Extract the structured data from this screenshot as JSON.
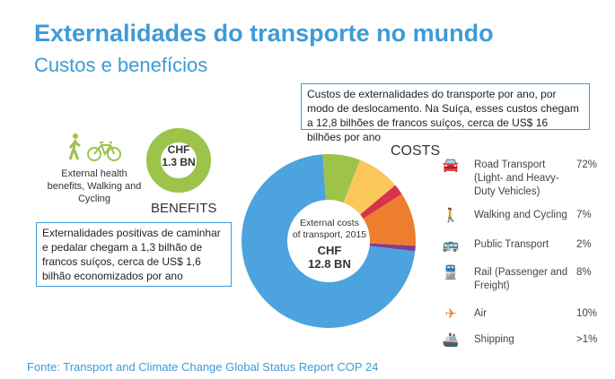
{
  "title": "Externalidades do transporte no mundo",
  "subtitle": "Custos e benefícios",
  "cost_note": "Custos de externalidades do transporte por ano, por modo de deslocamento. Na Suíça, esses custos chegam a 12,8 bilhões de francos suíços, cerca de US$ 16 bilhões por ano",
  "benefit_note": "Externalidades positivas de caminhar e pedalar chegam a 1,3 bilhão de francos suíços, cerca de US$ 1,6 bilhão economizados por ano",
  "benefits": {
    "icon_label": "External health benefits, Walking and Cycling",
    "line1": "CHF",
    "line2": "1.3 BN",
    "heading": "BENEFITS",
    "color": "#9dc34a"
  },
  "costs_heading": "COSTS",
  "donut_center": {
    "line1": "External costs",
    "line2": "of transport, 2015",
    "line3": "CHF",
    "line4": "12.8 BN"
  },
  "footer": "Fonte: Transport and Climate Change Global Status Report COP 24",
  "chart_data": {
    "type": "pie",
    "title": "External costs of transport, 2015 — CHF 12.8 BN",
    "slices": [
      {
        "name": "Walking and Cycling",
        "value": 7,
        "label": "7%",
        "color": "#9dc34a",
        "icon": "pedestrian-icon"
      },
      {
        "name": "Rail (Passenger and Freight)",
        "value": 8,
        "label": "8%",
        "color": "#fcc75a",
        "icon": "train-icon"
      },
      {
        "name": "Public Transport",
        "value": 2,
        "label": "2%",
        "color": "#d7334a",
        "icon": "bus-icon"
      },
      {
        "name": "Air",
        "value": 10,
        "label": "10%",
        "color": "#ee7d2f",
        "icon": "airplane-icon"
      },
      {
        "name": "Shipping",
        "value": 1,
        "label": ">1%",
        "color": "#7e3e8f",
        "icon": "ship-icon"
      },
      {
        "name": "Road Transport (Light- and Heavy-Duty Vehicles)",
        "value": 72,
        "label": "72%",
        "color": "#4ca3de",
        "icon": "car-icon"
      }
    ],
    "legend_order": [
      5,
      0,
      2,
      1,
      3,
      4
    ]
  }
}
